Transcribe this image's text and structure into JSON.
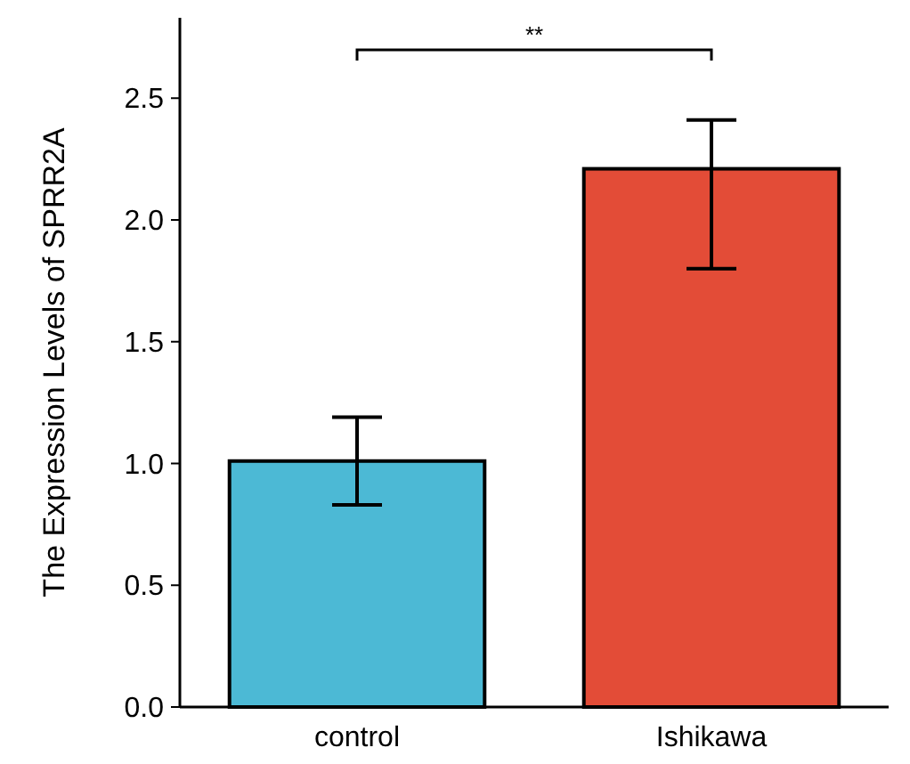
{
  "chart_data": {
    "type": "bar",
    "ylabel": "The Expression Levels of SPRR2A",
    "categories": [
      "control",
      "Ishikawa"
    ],
    "values": [
      1.01,
      2.21
    ],
    "colors": [
      "#4cb9d5",
      "#e34c37"
    ],
    "errors": [
      [
        0.83,
        1.19
      ],
      [
        1.8,
        2.41
      ]
    ],
    "ylim": [
      0,
      2.83
    ],
    "yticks": [
      {
        "value": 0,
        "label": "0.0"
      },
      {
        "value": 0.5,
        "label": "0.5"
      },
      {
        "value": 1,
        "label": "1.0"
      },
      {
        "value": 1.5,
        "label": "1.5"
      },
      {
        "value": 2,
        "label": "2.0"
      },
      {
        "value": 2.5,
        "label": "2.5"
      }
    ],
    "annotations": [
      "**"
    ]
  }
}
